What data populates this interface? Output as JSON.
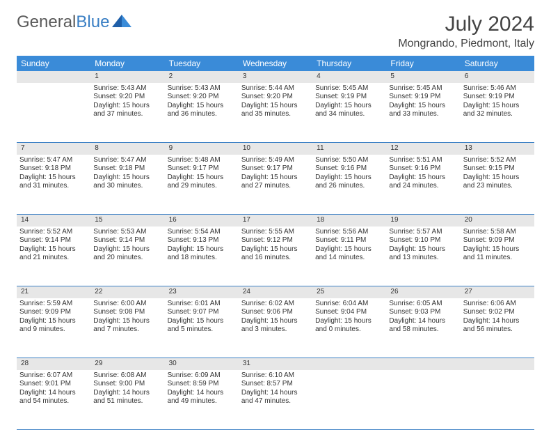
{
  "brand": {
    "part1": "General",
    "part2": "Blue"
  },
  "title": "July 2024",
  "location": "Mongrando, Piedmont, Italy",
  "colors": {
    "header_bg": "#3a8bd8",
    "header_fg": "#ffffff",
    "daynum_bg": "#e7e7e7",
    "border": "#3a7fc4",
    "text": "#333333",
    "brand_gray": "#5a5a5a",
    "brand_blue": "#3a7fc4",
    "page_bg": "#ffffff"
  },
  "typography": {
    "month_title_size_pt": 22,
    "location_size_pt": 12,
    "day_header_size_pt": 9,
    "daynum_size_pt": 9,
    "cell_size_pt": 7.5
  },
  "day_headers": [
    "Sunday",
    "Monday",
    "Tuesday",
    "Wednesday",
    "Thursday",
    "Friday",
    "Saturday"
  ],
  "weeks": [
    {
      "nums": [
        "",
        "1",
        "2",
        "3",
        "4",
        "5",
        "6"
      ],
      "cells": [
        null,
        {
          "sunrise": "Sunrise: 5:43 AM",
          "sunset": "Sunset: 9:20 PM",
          "day1": "Daylight: 15 hours",
          "day2": "and 37 minutes."
        },
        {
          "sunrise": "Sunrise: 5:43 AM",
          "sunset": "Sunset: 9:20 PM",
          "day1": "Daylight: 15 hours",
          "day2": "and 36 minutes."
        },
        {
          "sunrise": "Sunrise: 5:44 AM",
          "sunset": "Sunset: 9:20 PM",
          "day1": "Daylight: 15 hours",
          "day2": "and 35 minutes."
        },
        {
          "sunrise": "Sunrise: 5:45 AM",
          "sunset": "Sunset: 9:19 PM",
          "day1": "Daylight: 15 hours",
          "day2": "and 34 minutes."
        },
        {
          "sunrise": "Sunrise: 5:45 AM",
          "sunset": "Sunset: 9:19 PM",
          "day1": "Daylight: 15 hours",
          "day2": "and 33 minutes."
        },
        {
          "sunrise": "Sunrise: 5:46 AM",
          "sunset": "Sunset: 9:19 PM",
          "day1": "Daylight: 15 hours",
          "day2": "and 32 minutes."
        }
      ]
    },
    {
      "nums": [
        "7",
        "8",
        "9",
        "10",
        "11",
        "12",
        "13"
      ],
      "cells": [
        {
          "sunrise": "Sunrise: 5:47 AM",
          "sunset": "Sunset: 9:18 PM",
          "day1": "Daylight: 15 hours",
          "day2": "and 31 minutes."
        },
        {
          "sunrise": "Sunrise: 5:47 AM",
          "sunset": "Sunset: 9:18 PM",
          "day1": "Daylight: 15 hours",
          "day2": "and 30 minutes."
        },
        {
          "sunrise": "Sunrise: 5:48 AM",
          "sunset": "Sunset: 9:17 PM",
          "day1": "Daylight: 15 hours",
          "day2": "and 29 minutes."
        },
        {
          "sunrise": "Sunrise: 5:49 AM",
          "sunset": "Sunset: 9:17 PM",
          "day1": "Daylight: 15 hours",
          "day2": "and 27 minutes."
        },
        {
          "sunrise": "Sunrise: 5:50 AM",
          "sunset": "Sunset: 9:16 PM",
          "day1": "Daylight: 15 hours",
          "day2": "and 26 minutes."
        },
        {
          "sunrise": "Sunrise: 5:51 AM",
          "sunset": "Sunset: 9:16 PM",
          "day1": "Daylight: 15 hours",
          "day2": "and 24 minutes."
        },
        {
          "sunrise": "Sunrise: 5:52 AM",
          "sunset": "Sunset: 9:15 PM",
          "day1": "Daylight: 15 hours",
          "day2": "and 23 minutes."
        }
      ]
    },
    {
      "nums": [
        "14",
        "15",
        "16",
        "17",
        "18",
        "19",
        "20"
      ],
      "cells": [
        {
          "sunrise": "Sunrise: 5:52 AM",
          "sunset": "Sunset: 9:14 PM",
          "day1": "Daylight: 15 hours",
          "day2": "and 21 minutes."
        },
        {
          "sunrise": "Sunrise: 5:53 AM",
          "sunset": "Sunset: 9:14 PM",
          "day1": "Daylight: 15 hours",
          "day2": "and 20 minutes."
        },
        {
          "sunrise": "Sunrise: 5:54 AM",
          "sunset": "Sunset: 9:13 PM",
          "day1": "Daylight: 15 hours",
          "day2": "and 18 minutes."
        },
        {
          "sunrise": "Sunrise: 5:55 AM",
          "sunset": "Sunset: 9:12 PM",
          "day1": "Daylight: 15 hours",
          "day2": "and 16 minutes."
        },
        {
          "sunrise": "Sunrise: 5:56 AM",
          "sunset": "Sunset: 9:11 PM",
          "day1": "Daylight: 15 hours",
          "day2": "and 14 minutes."
        },
        {
          "sunrise": "Sunrise: 5:57 AM",
          "sunset": "Sunset: 9:10 PM",
          "day1": "Daylight: 15 hours",
          "day2": "and 13 minutes."
        },
        {
          "sunrise": "Sunrise: 5:58 AM",
          "sunset": "Sunset: 9:09 PM",
          "day1": "Daylight: 15 hours",
          "day2": "and 11 minutes."
        }
      ]
    },
    {
      "nums": [
        "21",
        "22",
        "23",
        "24",
        "25",
        "26",
        "27"
      ],
      "cells": [
        {
          "sunrise": "Sunrise: 5:59 AM",
          "sunset": "Sunset: 9:09 PM",
          "day1": "Daylight: 15 hours",
          "day2": "and 9 minutes."
        },
        {
          "sunrise": "Sunrise: 6:00 AM",
          "sunset": "Sunset: 9:08 PM",
          "day1": "Daylight: 15 hours",
          "day2": "and 7 minutes."
        },
        {
          "sunrise": "Sunrise: 6:01 AM",
          "sunset": "Sunset: 9:07 PM",
          "day1": "Daylight: 15 hours",
          "day2": "and 5 minutes."
        },
        {
          "sunrise": "Sunrise: 6:02 AM",
          "sunset": "Sunset: 9:06 PM",
          "day1": "Daylight: 15 hours",
          "day2": "and 3 minutes."
        },
        {
          "sunrise": "Sunrise: 6:04 AM",
          "sunset": "Sunset: 9:04 PM",
          "day1": "Daylight: 15 hours",
          "day2": "and 0 minutes."
        },
        {
          "sunrise": "Sunrise: 6:05 AM",
          "sunset": "Sunset: 9:03 PM",
          "day1": "Daylight: 14 hours",
          "day2": "and 58 minutes."
        },
        {
          "sunrise": "Sunrise: 6:06 AM",
          "sunset": "Sunset: 9:02 PM",
          "day1": "Daylight: 14 hours",
          "day2": "and 56 minutes."
        }
      ]
    },
    {
      "nums": [
        "28",
        "29",
        "30",
        "31",
        "",
        "",
        ""
      ],
      "cells": [
        {
          "sunrise": "Sunrise: 6:07 AM",
          "sunset": "Sunset: 9:01 PM",
          "day1": "Daylight: 14 hours",
          "day2": "and 54 minutes."
        },
        {
          "sunrise": "Sunrise: 6:08 AM",
          "sunset": "Sunset: 9:00 PM",
          "day1": "Daylight: 14 hours",
          "day2": "and 51 minutes."
        },
        {
          "sunrise": "Sunrise: 6:09 AM",
          "sunset": "Sunset: 8:59 PM",
          "day1": "Daylight: 14 hours",
          "day2": "and 49 minutes."
        },
        {
          "sunrise": "Sunrise: 6:10 AM",
          "sunset": "Sunset: 8:57 PM",
          "day1": "Daylight: 14 hours",
          "day2": "and 47 minutes."
        },
        null,
        null,
        null
      ]
    }
  ]
}
